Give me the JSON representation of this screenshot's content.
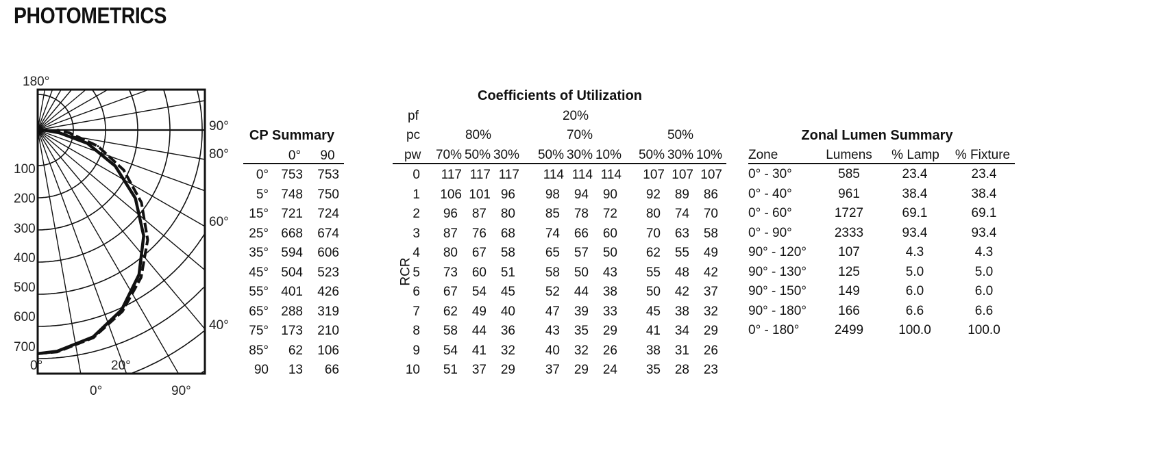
{
  "page_title": "PHOTOMETRICS",
  "polar": {
    "top_label": "180°",
    "right_labels": [
      "90°",
      "80°",
      "60°",
      "40°"
    ],
    "left_labels": [
      "100",
      "200",
      "300",
      "400",
      "500",
      "600",
      "700"
    ],
    "bottom_labels": [
      "0°",
      "20°"
    ],
    "cut_labels": [
      "0°",
      "90°"
    ]
  },
  "chart_data": {
    "type": "polar-line",
    "angles": [
      0,
      5,
      15,
      25,
      35,
      45,
      55,
      65,
      75,
      85,
      90
    ],
    "series": [
      {
        "name": "0°",
        "style": "solid",
        "values": [
          753,
          748,
          721,
          668,
          594,
          504,
          401,
          288,
          173,
          62,
          13
        ]
      },
      {
        "name": "90",
        "style": "dashed",
        "values": [
          753,
          750,
          724,
          674,
          606,
          523,
          426,
          319,
          210,
          106,
          66
        ]
      }
    ],
    "radial_ticks": [
      "100",
      "200",
      "300",
      "400",
      "500",
      "600",
      "700"
    ],
    "angle_ticks": [
      "0°",
      "20°",
      "40°",
      "60°",
      "80°",
      "90°",
      "180°"
    ]
  },
  "cp_summary": {
    "title": "CP Summary",
    "headers": [
      "",
      "0°",
      "90"
    ],
    "rows": [
      [
        "0°",
        "753",
        "753"
      ],
      [
        "5°",
        "748",
        "750"
      ],
      [
        "15°",
        "721",
        "724"
      ],
      [
        "25°",
        "668",
        "674"
      ],
      [
        "35°",
        "594",
        "606"
      ],
      [
        "45°",
        "504",
        "523"
      ],
      [
        "55°",
        "401",
        "426"
      ],
      [
        "65°",
        "288",
        "319"
      ],
      [
        "75°",
        "173",
        "210"
      ],
      [
        "85°",
        "62",
        "106"
      ],
      [
        "90",
        "13",
        "66"
      ]
    ]
  },
  "cu": {
    "title": "Coefficients of Utilization",
    "pf_label": "pf",
    "pf_value": "20%",
    "pc_label": "pc",
    "pc_values": [
      "80%",
      "70%",
      "50%"
    ],
    "pw_label": "pw",
    "pw_values": [
      "70%",
      "50%",
      "30%",
      "50%",
      "30%",
      "10%",
      "50%",
      "30%",
      "10%"
    ],
    "rcr_label": "RCR",
    "rows": [
      [
        "0",
        "117",
        "117",
        "117",
        "114",
        "114",
        "114",
        "107",
        "107",
        "107"
      ],
      [
        "1",
        "106",
        "101",
        "96",
        "98",
        "94",
        "90",
        "92",
        "89",
        "86"
      ],
      [
        "2",
        "96",
        "87",
        "80",
        "85",
        "78",
        "72",
        "80",
        "74",
        "70"
      ],
      [
        "3",
        "87",
        "76",
        "68",
        "74",
        "66",
        "60",
        "70",
        "63",
        "58"
      ],
      [
        "4",
        "80",
        "67",
        "58",
        "65",
        "57",
        "50",
        "62",
        "55",
        "49"
      ],
      [
        "5",
        "73",
        "60",
        "51",
        "58",
        "50",
        "43",
        "55",
        "48",
        "42"
      ],
      [
        "6",
        "67",
        "54",
        "45",
        "52",
        "44",
        "38",
        "50",
        "42",
        "37"
      ],
      [
        "7",
        "62",
        "49",
        "40",
        "47",
        "39",
        "33",
        "45",
        "38",
        "32"
      ],
      [
        "8",
        "58",
        "44",
        "36",
        "43",
        "35",
        "29",
        "41",
        "34",
        "29"
      ],
      [
        "9",
        "54",
        "41",
        "32",
        "40",
        "32",
        "26",
        "38",
        "31",
        "26"
      ],
      [
        "10",
        "51",
        "37",
        "29",
        "37",
        "29",
        "24",
        "35",
        "28",
        "23"
      ]
    ]
  },
  "zonal": {
    "title": "Zonal Lumen Summary",
    "headers": [
      "Zone",
      "Lumens",
      "% Lamp",
      "% Fixture"
    ],
    "rows": [
      [
        "0° - 30°",
        "585",
        "23.4",
        "23.4"
      ],
      [
        "0° - 40°",
        "961",
        "38.4",
        "38.4"
      ],
      [
        "0° - 60°",
        "1727",
        "69.1",
        "69.1"
      ],
      [
        "0° - 90°",
        "2333",
        "93.4",
        "93.4"
      ],
      [
        "90° - 120°",
        "107",
        "4.3",
        "4.3"
      ],
      [
        "90° - 130°",
        "125",
        "5.0",
        "5.0"
      ],
      [
        "90° - 150°",
        "149",
        "6.0",
        "6.0"
      ],
      [
        "90° - 180°",
        "166",
        "6.6",
        "6.6"
      ],
      [
        "0° - 180°",
        "2499",
        "100.0",
        "100.0"
      ]
    ]
  }
}
